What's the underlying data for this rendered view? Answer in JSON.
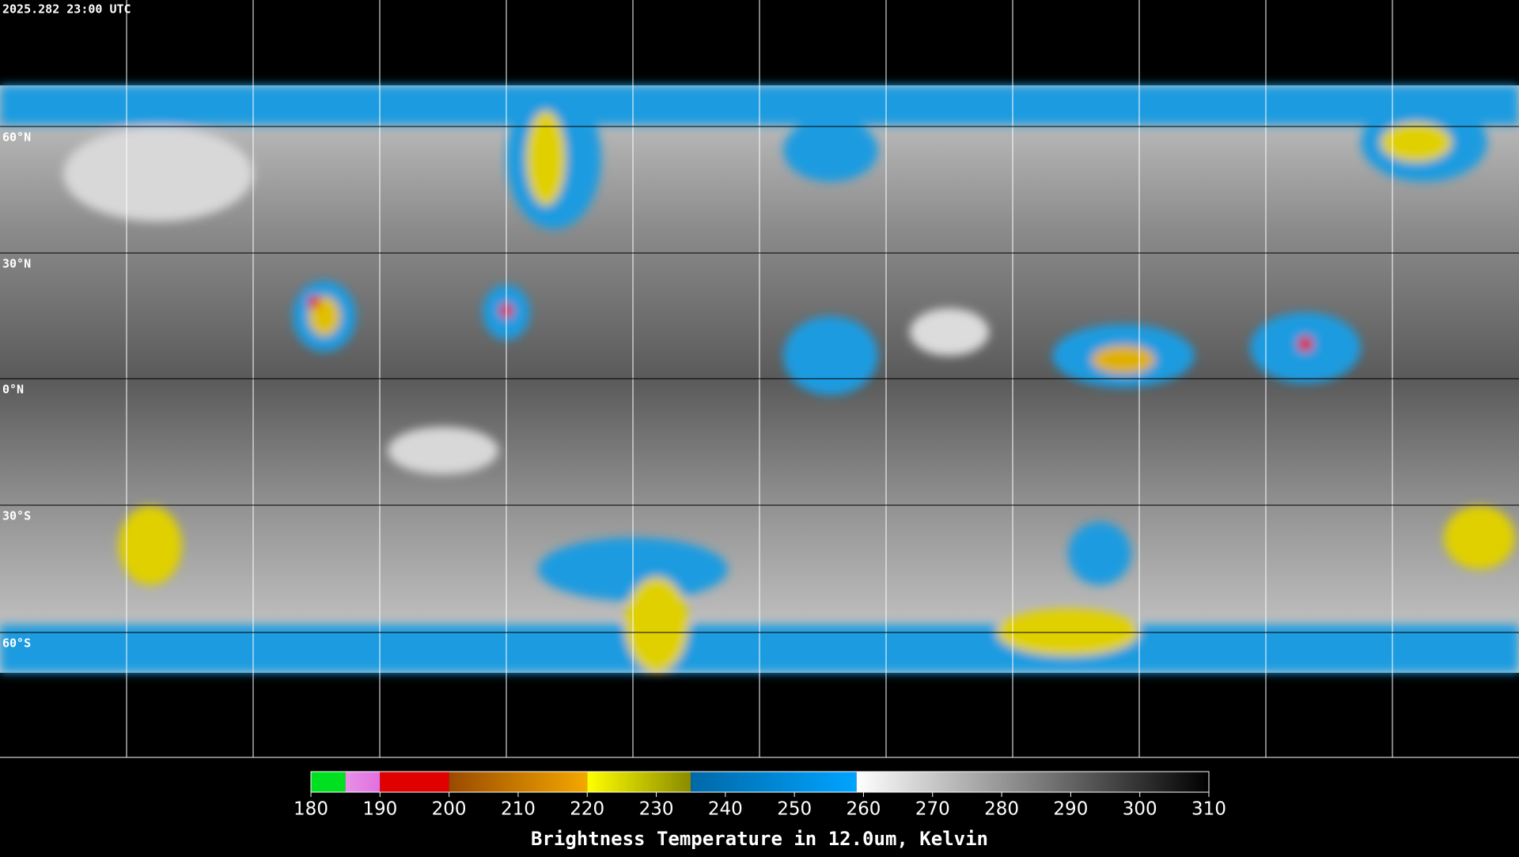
{
  "header": {
    "timestamp": "2025.282 23:00 UTC"
  },
  "map": {
    "latitude_labels": [
      "60°N",
      "30°N",
      "0°N",
      "30°S",
      "60°S"
    ]
  },
  "colorbar": {
    "title": "Brightness Temperature in 12.0um, Kelvin",
    "range": [
      180,
      310
    ],
    "ticks": [
      180,
      190,
      200,
      210,
      220,
      230,
      240,
      250,
      260,
      270,
      280,
      290,
      300,
      310
    ],
    "segments": [
      {
        "from": 180,
        "to": 185,
        "colors": [
          "#00e020",
          "#00e020"
        ]
      },
      {
        "from": 185,
        "to": 190,
        "colors": [
          "#e890e8",
          "#e070e0"
        ]
      },
      {
        "from": 190,
        "to": 200,
        "colors": [
          "#e00000",
          "#e00000"
        ]
      },
      {
        "from": 200,
        "to": 220,
        "colors": [
          "#9a4a00",
          "#f4a800"
        ]
      },
      {
        "from": 220,
        "to": 235,
        "colors": [
          "#ffff00",
          "#8a8a00"
        ]
      },
      {
        "from": 235,
        "to": 259,
        "colors": [
          "#0068a8",
          "#00a4ff"
        ]
      },
      {
        "from": 259,
        "to": 310,
        "colors": [
          "#ffffff",
          "#000000"
        ]
      }
    ]
  }
}
